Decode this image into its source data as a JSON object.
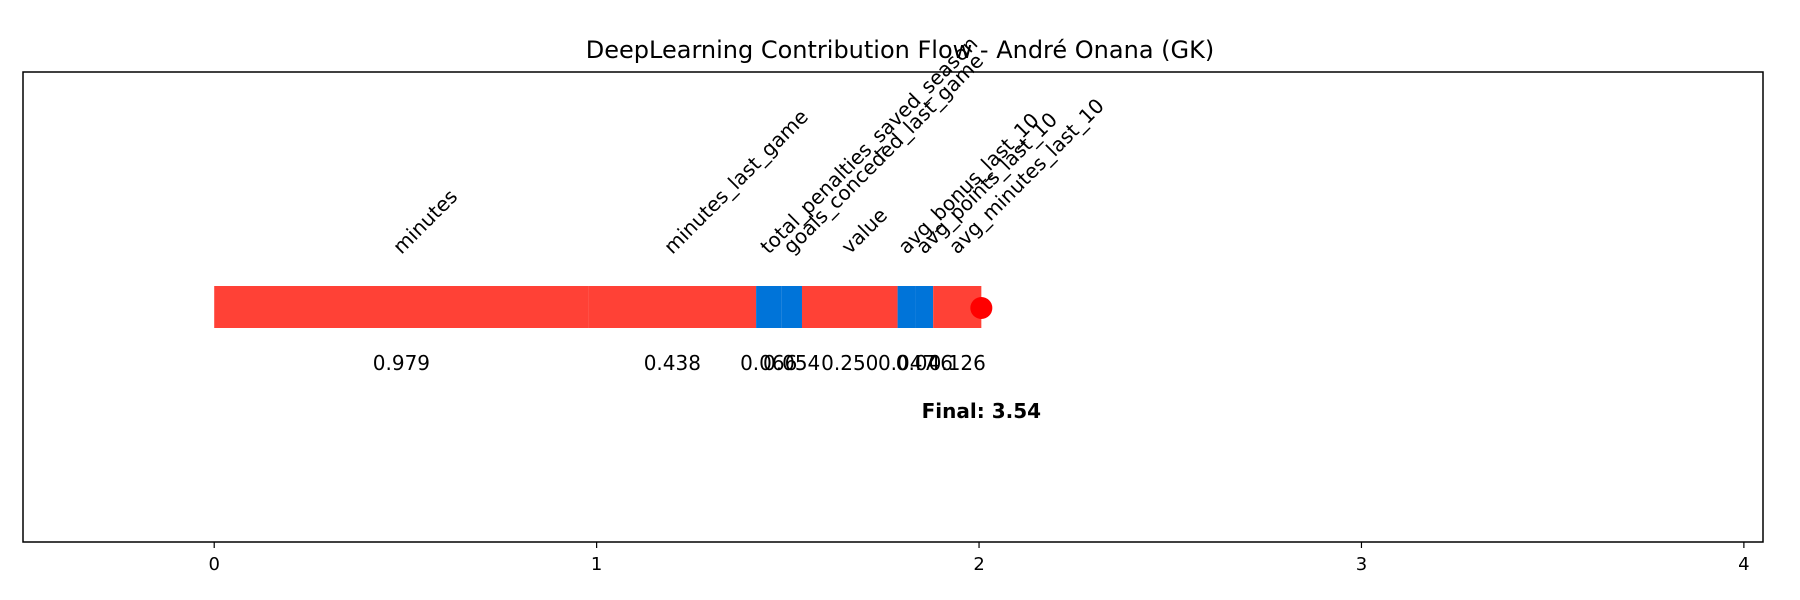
{
  "chart_data": {
    "type": "waterfall",
    "title": "DeepLearning Contribution Flow - André Onana (GK)",
    "xlim": [
      -0.5,
      4.05
    ],
    "xticks": [
      0,
      1,
      2,
      3,
      4
    ],
    "tick_labels": [
      "0",
      "1",
      "2",
      "3",
      "4"
    ],
    "grid": false,
    "start": 0,
    "features": [
      {
        "name": "minutes",
        "value": 0.979,
        "value_label": "0.979",
        "direction": "positive"
      },
      {
        "name": "minutes_last_game",
        "value": 0.438,
        "value_label": "0.438",
        "direction": "positive"
      },
      {
        "name": "total_penalties_saved_season",
        "value": 0.066,
        "value_label": "0.066",
        "direction": "negative"
      },
      {
        "name": "goals_conceded_last_game",
        "value": 0.054,
        "value_label": "0.054",
        "direction": "negative"
      },
      {
        "name": "value",
        "value": 0.25,
        "value_label": "0.250",
        "direction": "positive"
      },
      {
        "name": "avg_bonus_last_10",
        "value": 0.047,
        "value_label": "0.047",
        "direction": "negative"
      },
      {
        "name": "avg_points_last_10",
        "value": 0.046,
        "value_label": "0.046",
        "direction": "negative"
      },
      {
        "name": "avg_minutes_last_10",
        "value": 0.126,
        "value_label": "0.126",
        "direction": "positive"
      }
    ],
    "final_label": "Final: 3.54",
    "colors": {
      "positive": "#ff4136",
      "negative": "#0074d9",
      "final_marker": "#ff0000",
      "axis": "#000000"
    }
  }
}
